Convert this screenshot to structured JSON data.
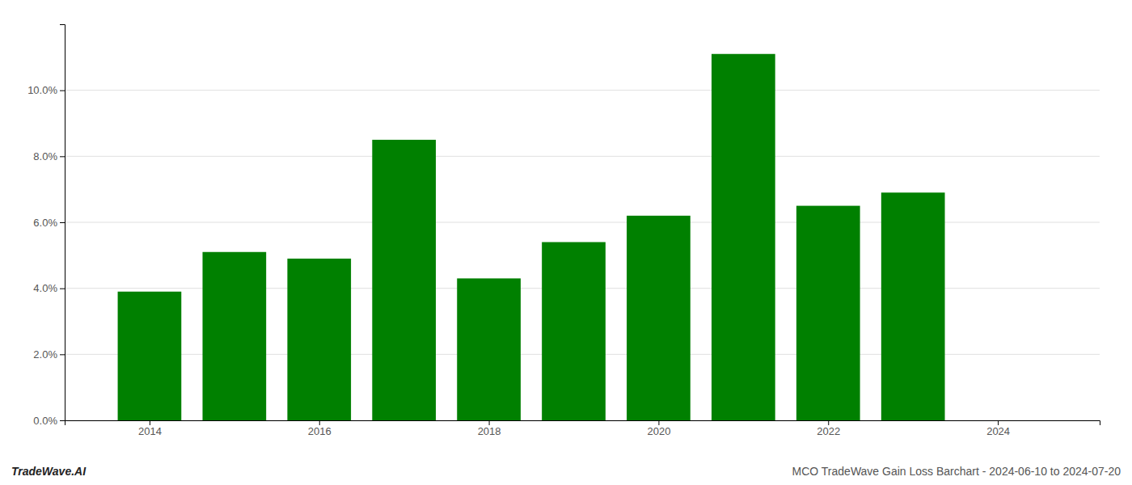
{
  "chart_data": {
    "type": "bar",
    "x": [
      2014,
      2015,
      2016,
      2017,
      2018,
      2019,
      2020,
      2021,
      2022,
      2023
    ],
    "values": [
      0.039,
      0.051,
      0.049,
      0.085,
      0.043,
      0.054,
      0.062,
      0.111,
      0.065,
      0.069
    ],
    "color": "#008000",
    "xlim": [
      2013.0,
      2025.2
    ],
    "xticks": [
      2014,
      2016,
      2018,
      2020,
      2022,
      2024
    ],
    "ylim": [
      0,
      0.12
    ],
    "yticks": [
      {
        "value": 0.0,
        "label": "0.0%"
      },
      {
        "value": 0.02,
        "label": "2.0%"
      },
      {
        "value": 0.04,
        "label": "4.0%"
      },
      {
        "value": 0.06,
        "label": "6.0%"
      },
      {
        "value": 0.08,
        "label": "8.0%"
      },
      {
        "value": 0.1,
        "label": "10.0%"
      }
    ],
    "grid": true,
    "annotations": [
      "TradeWave.AI",
      "MCO TradeWave Gain Loss Barchart - 2024-06-10 to 2024-07-20"
    ]
  }
}
